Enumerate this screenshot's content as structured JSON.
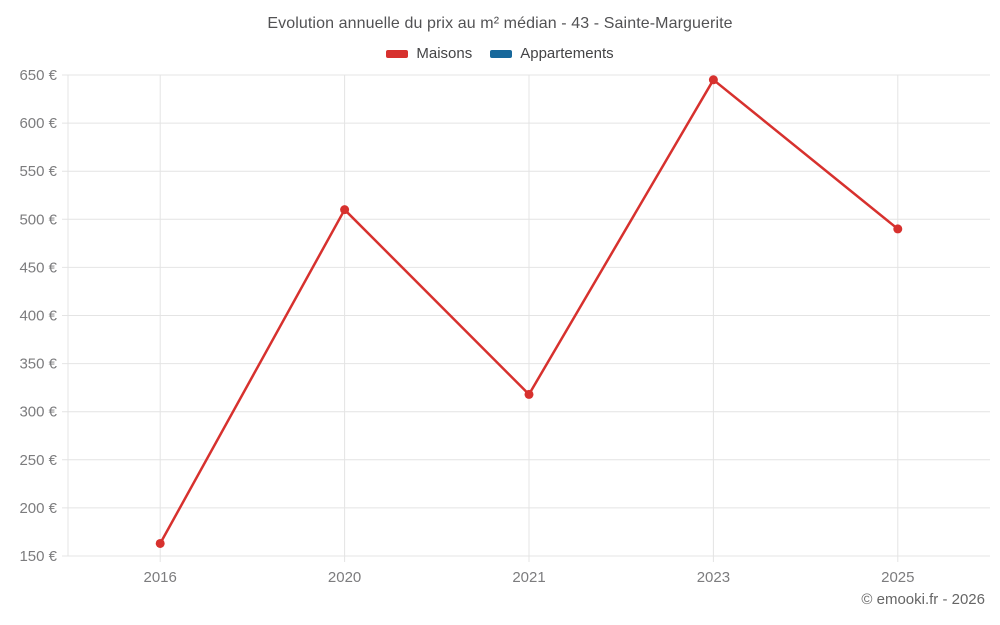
{
  "title": "Evolution annuelle du prix au m² médian - 43 - Sainte-Marguerite",
  "footer": "© emooki.fr - 2026",
  "colors": {
    "maisons": "#d7312e",
    "appartements": "#17689b",
    "grid": "#e4e4e4",
    "axis_text": "#7c7c7e",
    "title_text": "#525254",
    "legend_text": "#444446",
    "footer_text": "#666666"
  },
  "legend": {
    "items": [
      {
        "label": "Maisons",
        "color_key": "maisons"
      },
      {
        "label": "Appartements",
        "color_key": "appartements"
      }
    ]
  },
  "chart_data": {
    "type": "line",
    "title": "Evolution annuelle du prix au m² médian - 43 - Sainte-Marguerite",
    "categories": [
      "2016",
      "2020",
      "2021",
      "2023",
      "2025"
    ],
    "series": [
      {
        "name": "Maisons",
        "color_key": "maisons",
        "values": [
          163,
          510,
          318,
          645,
          490
        ]
      },
      {
        "name": "Appartements",
        "color_key": "appartements",
        "values": []
      }
    ],
    "xlabel": "",
    "ylabel": "",
    "ylim": [
      150,
      650
    ],
    "ytick_step": 50,
    "ytick_suffix": " €",
    "grid": true,
    "legend_position": "top",
    "marker": "circle"
  }
}
